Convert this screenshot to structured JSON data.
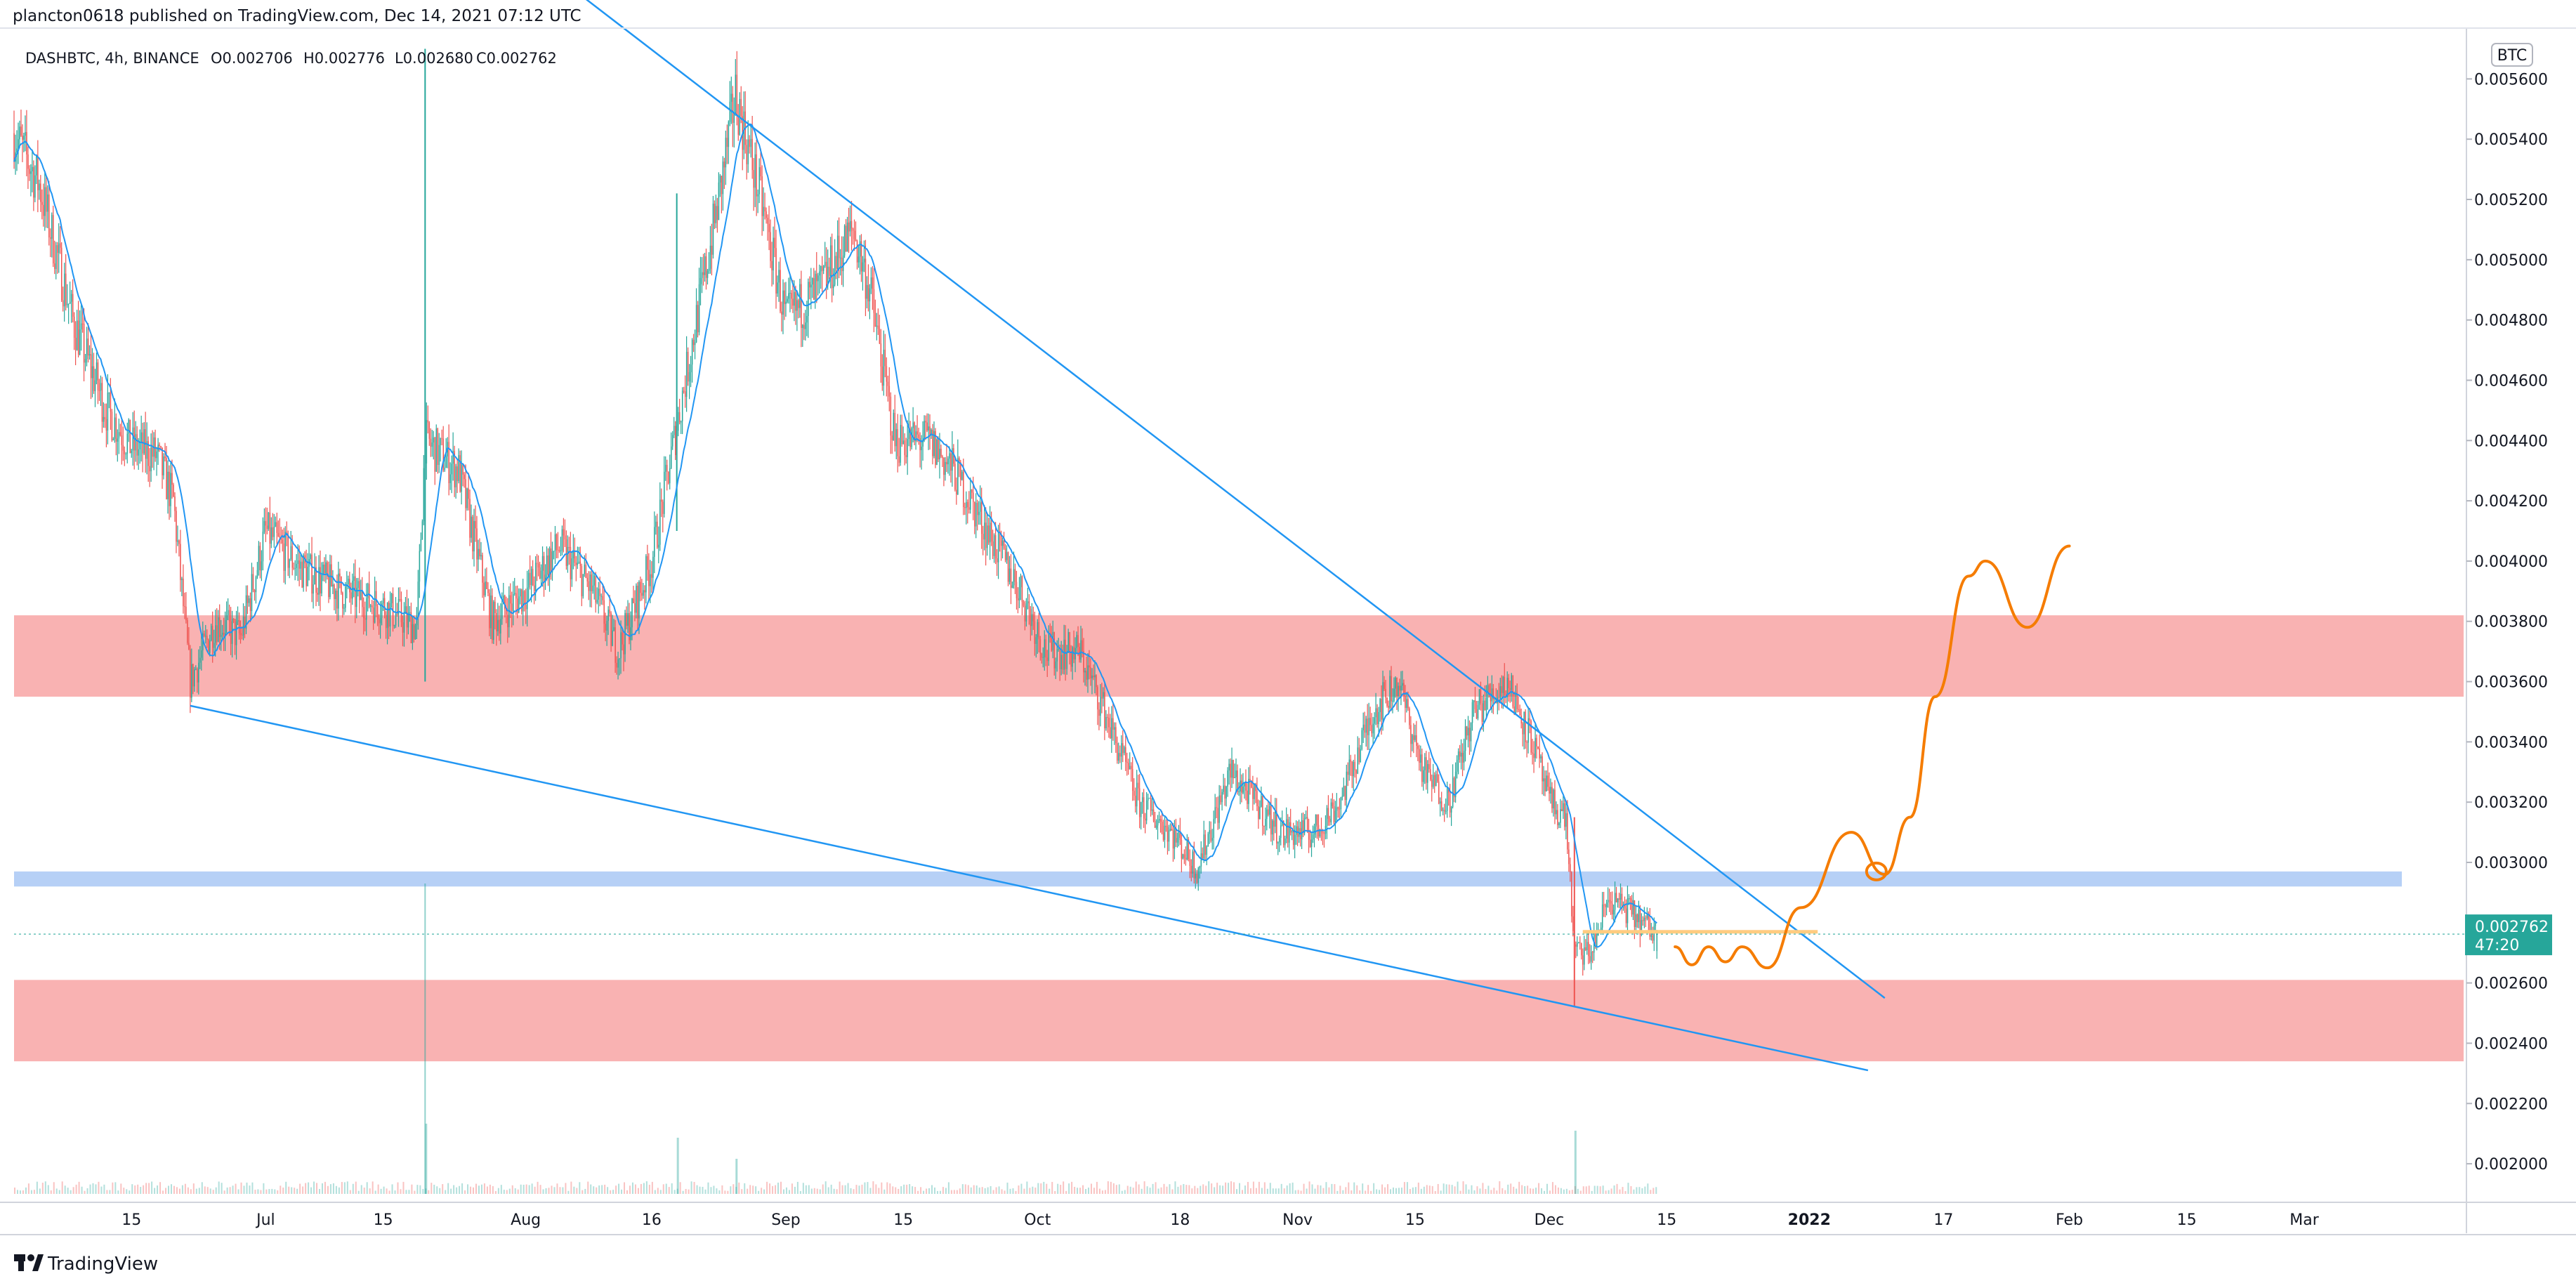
{
  "header": {
    "published_by": "plancton0618 published on TradingView.com, Dec 14, 2021 07:12 UTC"
  },
  "legend": {
    "symbol": "DASHBTC, 4h, BINANCE",
    "open": "O0.002706",
    "high": "H0.002776",
    "low": "L0.002680",
    "close": "C0.002762"
  },
  "footer": {
    "brand": "TradingView"
  },
  "price_axis": {
    "currency_badge": "BTC",
    "labels": [
      "0.005600",
      "0.005400",
      "0.005200",
      "0.005000",
      "0.004800",
      "0.004600",
      "0.004400",
      "0.004200",
      "0.004000",
      "0.003800",
      "0.003600",
      "0.003400",
      "0.003200",
      "0.003000",
      "0.002600",
      "0.002400",
      "0.002200",
      "0.002000"
    ],
    "last_price": "0.002762",
    "countdown": "47:20"
  },
  "time_axis": {
    "labels": [
      "15",
      "Jul",
      "15",
      "Aug",
      "16",
      "Sep",
      "15",
      "Oct",
      "18",
      "Nov",
      "15",
      "Dec",
      "15",
      "2022",
      "17",
      "Feb",
      "15",
      "Mar"
    ]
  },
  "colors": {
    "up": "#26a69a",
    "down": "#ef5350",
    "ma": "#2196f3",
    "trendline": "#2196f3",
    "resistance_zone": "#f8a5a5",
    "support_zone": "#aecbf5",
    "projection": "#f57c00",
    "target_line": "#ffcc80",
    "last_price_badge": "#26a69a"
  },
  "chart_data": {
    "type": "candlestick",
    "symbol": "DASHBTC",
    "interval": "4h",
    "exchange": "BINANCE",
    "ylim": [
      0.0019,
      0.00575
    ],
    "x_range": [
      "2021-06-01",
      "2022-03-20"
    ],
    "current": {
      "open": 0.002706,
      "high": 0.002776,
      "low": 0.00268,
      "close": 0.002762
    },
    "price_path": [
      [
        "2021-06-01",
        0.00542
      ],
      [
        "2021-06-04",
        0.00525
      ],
      [
        "2021-06-08",
        0.0048
      ],
      [
        "2021-06-12",
        0.0045
      ],
      [
        "2021-06-15",
        0.00438
      ],
      [
        "2021-06-18",
        0.00435
      ],
      [
        "2021-06-20",
        0.0042
      ],
      [
        "2021-06-22",
        0.0036
      ],
      [
        "2021-06-25",
        0.0038
      ],
      [
        "2021-06-28",
        0.00375
      ],
      [
        "2021-07-01",
        0.0041
      ],
      [
        "2021-07-05",
        0.00398
      ],
      [
        "2021-07-10",
        0.0039
      ],
      [
        "2021-07-15",
        0.00385
      ],
      [
        "2021-07-19",
        0.00378
      ],
      [
        "2021-07-20",
        0.0044
      ],
      [
        "2021-07-24",
        0.0043
      ],
      [
        "2021-07-28",
        0.0038
      ],
      [
        "2021-08-01",
        0.0039
      ],
      [
        "2021-08-05",
        0.00405
      ],
      [
        "2021-08-09",
        0.0039
      ],
      [
        "2021-08-12",
        0.0037
      ],
      [
        "2021-08-16",
        0.004
      ],
      [
        "2021-08-20",
        0.0046
      ],
      [
        "2021-08-24",
        0.0052
      ],
      [
        "2021-08-26",
        0.00555
      ],
      [
        "2021-08-29",
        0.0052
      ],
      [
        "2021-09-01",
        0.0048
      ],
      [
        "2021-09-05",
        0.0049
      ],
      [
        "2021-09-09",
        0.0051
      ],
      [
        "2021-09-11",
        0.0049
      ],
      [
        "2021-09-14",
        0.0044
      ],
      [
        "2021-09-18",
        0.0044
      ],
      [
        "2021-09-21",
        0.0043
      ],
      [
        "2021-09-25",
        0.0041
      ],
      [
        "2021-09-29",
        0.0039
      ],
      [
        "2021-10-02",
        0.0037
      ],
      [
        "2021-10-06",
        0.0037
      ],
      [
        "2021-10-09",
        0.0035
      ],
      [
        "2021-10-13",
        0.0032
      ],
      [
        "2021-10-17",
        0.0031
      ],
      [
        "2021-10-20",
        0.00298
      ],
      [
        "2021-10-24",
        0.0033
      ],
      [
        "2021-10-27",
        0.0032
      ],
      [
        "2021-10-30",
        0.0031
      ],
      [
        "2021-11-03",
        0.0031
      ],
      [
        "2021-11-06",
        0.0032
      ],
      [
        "2021-11-10",
        0.0035
      ],
      [
        "2021-11-13",
        0.0036
      ],
      [
        "2021-11-16",
        0.0033
      ],
      [
        "2021-11-19",
        0.0032
      ],
      [
        "2021-11-22",
        0.0035
      ],
      [
        "2021-11-26",
        0.0036
      ],
      [
        "2021-11-29",
        0.0034
      ],
      [
        "2021-12-01",
        0.0032
      ],
      [
        "2021-12-03",
        0.00315
      ],
      [
        "2021-12-04",
        0.0027
      ],
      [
        "2021-12-06",
        0.0027
      ],
      [
        "2021-12-08",
        0.00288
      ],
      [
        "2021-12-10",
        0.00285
      ],
      [
        "2021-12-12",
        0.0028
      ],
      [
        "2021-12-14",
        0.002762
      ]
    ],
    "spikes": [
      {
        "date": "2021-07-20",
        "high": 0.0057,
        "low": 0.0036
      },
      {
        "date": "2021-08-19",
        "high": 0.00522,
        "low": 0.0041
      },
      {
        "date": "2021-12-04",
        "high": 0.00315,
        "low": 0.00252
      }
    ],
    "volume": [
      {
        "date": "2021-07-20",
        "value": 0.1
      },
      {
        "date": "2021-08-19",
        "value": 0.08
      },
      {
        "date": "2021-08-26",
        "value": 0.05
      },
      {
        "date": "2021-12-04",
        "value": 0.09
      }
    ],
    "drawings": {
      "resistance_zone": {
        "from": 0.00355,
        "to": 0.00382
      },
      "support_zone_upper": {
        "from": 0.00292,
        "to": 0.00297
      },
      "support_zone_lower": {
        "from": 0.00234,
        "to": 0.00261
      },
      "descending_trendline": [
        [
          "2021-08-07",
          0.00589
        ],
        [
          "2022-01-10",
          0.00255
        ]
      ],
      "lower_trendline": [
        [
          "2021-06-22",
          0.00352
        ],
        [
          "2022-01-08",
          0.00231
        ]
      ],
      "target_line": {
        "price": 0.00277,
        "from": "2021-12-05",
        "to": "2022-01-02"
      },
      "projection_path": [
        [
          "2021-12-16",
          0.00272
        ],
        [
          "2021-12-18",
          0.00266
        ],
        [
          "2021-12-20",
          0.00272
        ],
        [
          "2021-12-22",
          0.00267
        ],
        [
          "2021-12-24",
          0.00272
        ],
        [
          "2021-12-27",
          0.00265
        ],
        [
          "2021-12-31",
          0.00285
        ],
        [
          "2022-01-06",
          0.0031
        ],
        [
          "2022-01-10",
          0.00296
        ],
        [
          "2022-01-13",
          0.00315
        ],
        [
          "2022-01-16",
          0.00355
        ],
        [
          "2022-01-20",
          0.00395
        ],
        [
          "2022-01-22",
          0.004
        ],
        [
          "2022-01-27",
          0.00378
        ],
        [
          "2022-02-01",
          0.00405
        ]
      ],
      "circle_marker": [
        "2022-01-09",
        0.00297
      ]
    }
  }
}
